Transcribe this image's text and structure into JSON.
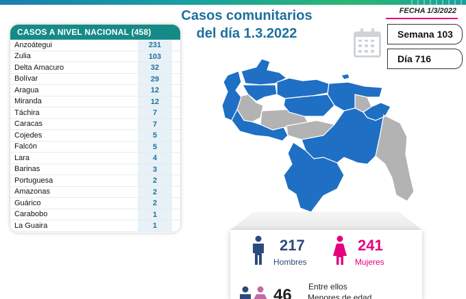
{
  "header": {
    "title_line1": "Casos comunitarios",
    "title_line2": "del día 1.3.2022",
    "date": "FECHA 1/3/2022"
  },
  "info": {
    "week": "Semana 103",
    "day": "Día 716"
  },
  "national": {
    "heading": "CASOS A NIVEL NACIONAL  (458)",
    "states": [
      {
        "name": "Anzoátegui",
        "value": "231"
      },
      {
        "name": "Zulia",
        "value": "103"
      },
      {
        "name": "Delta Amacuro",
        "value": "32"
      },
      {
        "name": "Bolívar",
        "value": "29"
      },
      {
        "name": "Aragua",
        "value": "12"
      },
      {
        "name": "Miranda",
        "value": "12"
      },
      {
        "name": "Táchira",
        "value": "7"
      },
      {
        "name": "Caracas",
        "value": "7"
      },
      {
        "name": "Cojedes",
        "value": "5"
      },
      {
        "name": "Falcón",
        "value": "5"
      },
      {
        "name": "Lara",
        "value": "4"
      },
      {
        "name": "Barinas",
        "value": "3"
      },
      {
        "name": "Portuguesa",
        "value": "2"
      },
      {
        "name": "Amazonas",
        "value": "2"
      },
      {
        "name": "Guárico",
        "value": "2"
      },
      {
        "name": "Carabobo",
        "value": "1"
      },
      {
        "name": "La Guaira",
        "value": "1"
      }
    ]
  },
  "gender": {
    "men_count": "217",
    "men_label": "Hombres",
    "women_count": "241",
    "women_label": "Mujeres"
  },
  "minors": {
    "count": "46",
    "line1": "Entre ellos",
    "line2": "Menores de edad"
  },
  "colors": {
    "accent_teal": "#168a86",
    "title_blue": "#1d6f9e",
    "map_blue": "#1f6fc4",
    "map_gray": "#b3b3b3",
    "men": "#2b4b7c",
    "women": "#e6007e"
  }
}
